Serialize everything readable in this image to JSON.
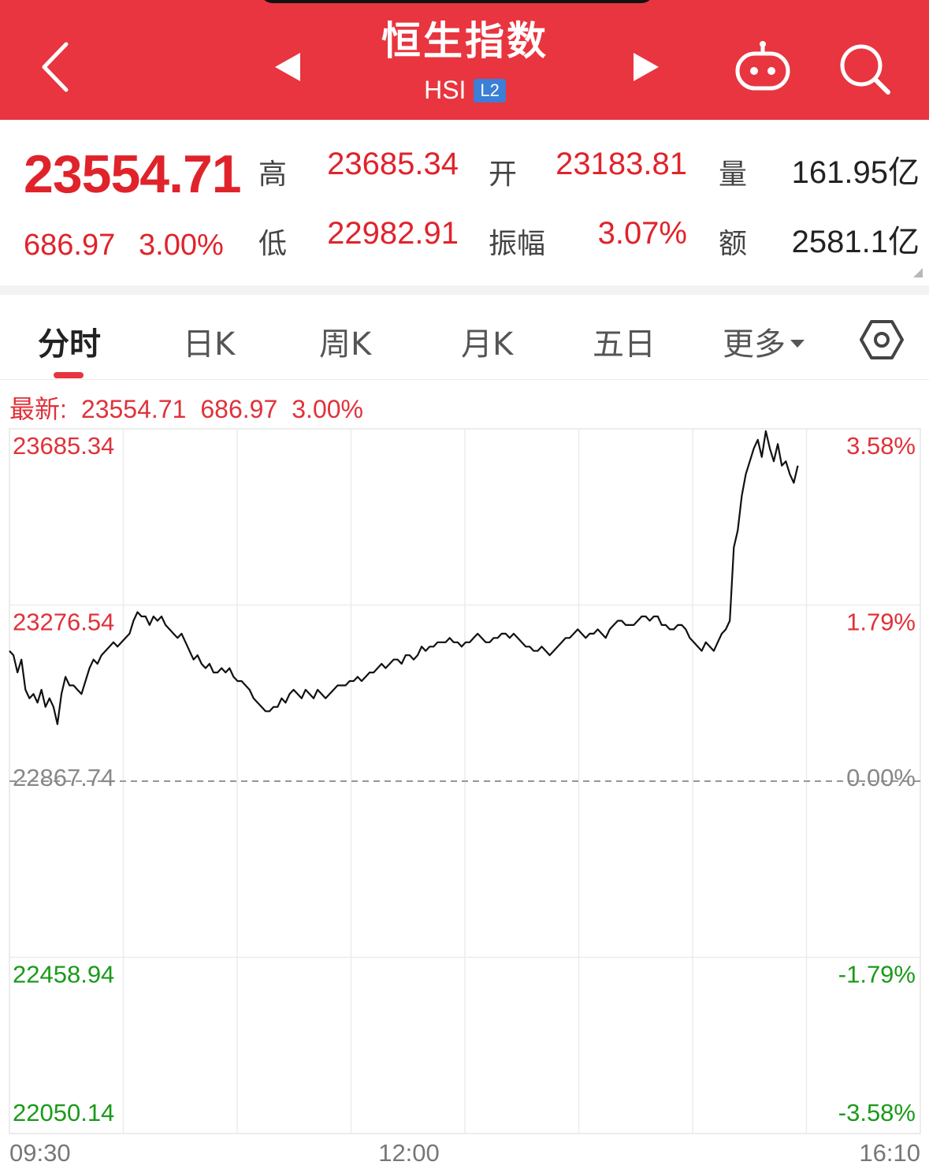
{
  "header": {
    "title": "恒生指数",
    "code": "HSI",
    "badge": "L2",
    "bg_color": "#e8353f",
    "icons": [
      "back-icon",
      "prev-arrow-icon",
      "next-arrow-icon",
      "robot-icon",
      "search-icon"
    ]
  },
  "quote": {
    "price": "23554.71",
    "change": "686.97",
    "change_pct": "3.00%",
    "fields": {
      "high": {
        "label": "高",
        "value": "23685.34"
      },
      "open": {
        "label": "开",
        "value": "23183.81"
      },
      "volume": {
        "label": "量",
        "value": "161.95亿"
      },
      "low": {
        "label": "低",
        "value": "22982.91"
      },
      "amplitude": {
        "label": "振幅",
        "value": "3.07%"
      },
      "turnover": {
        "label": "额",
        "value": "2581.1亿"
      }
    },
    "up_color": "#e0232b"
  },
  "tabs": {
    "items": [
      "分时",
      "日K",
      "周K",
      "月K",
      "五日",
      "更多"
    ],
    "active": "分时"
  },
  "latest": {
    "label": "最新:",
    "price": "23554.71",
    "change": "686.97",
    "pct": "3.00%"
  },
  "chart_data": {
    "type": "line",
    "grid": true,
    "x_ticks": [
      "09:30",
      "12:00",
      "16:10"
    ],
    "y_ticks_left": [
      "23685.34",
      "23276.54",
      "22867.74",
      "22458.94",
      "22050.14"
    ],
    "y_ticks_right": [
      "3.58%",
      "1.79%",
      "0.00%",
      "-1.79%",
      "-3.58%"
    ],
    "prev_close": 22867.74,
    "ylim": [
      22050.14,
      23685.34
    ],
    "colors": {
      "up": "#e0323a",
      "down": "#1a9a1a",
      "flat": "#888888",
      "line": "#111111"
    },
    "series": [
      {
        "values": [
          23170,
          23160,
          23120,
          23150,
          23080,
          23060,
          23070,
          23050,
          23080,
          23040,
          23060,
          23040,
          23000,
          23070,
          23110,
          23090,
          23090,
          23080,
          23070,
          23100,
          23130,
          23150,
          23140,
          23160,
          23170,
          23180,
          23190,
          23180,
          23190,
          23200,
          23210,
          23240,
          23260,
          23250,
          23250,
          23230,
          23250,
          23240,
          23250,
          23230,
          23220,
          23210,
          23200,
          23210,
          23190,
          23170,
          23150,
          23160,
          23140,
          23130,
          23140,
          23120,
          23120,
          23130,
          23120,
          23130,
          23110,
          23100,
          23100,
          23090,
          23080,
          23060,
          23050,
          23040,
          23030,
          23030,
          23040,
          23040,
          23060,
          23050,
          23070,
          23080,
          23070,
          23060,
          23080,
          23070,
          23060,
          23080,
          23070,
          23060,
          23070,
          23080,
          23090,
          23090,
          23090,
          23100,
          23100,
          23110,
          23100,
          23110,
          23120,
          23120,
          23130,
          23140,
          23130,
          23140,
          23150,
          23150,
          23140,
          23160,
          23160,
          23150,
          23160,
          23180,
          23170,
          23180,
          23180,
          23190,
          23190,
          23190,
          23200,
          23190,
          23190,
          23180,
          23190,
          23190,
          23200,
          23210,
          23200,
          23190,
          23190,
          23200,
          23200,
          23210,
          23210,
          23200,
          23210,
          23200,
          23190,
          23180,
          23180,
          23170,
          23170,
          23180,
          23170,
          23160,
          23170,
          23180,
          23190,
          23200,
          23200,
          23210,
          23220,
          23210,
          23200,
          23210,
          23210,
          23220,
          23210,
          23200,
          23220,
          23230,
          23240,
          23240,
          23230,
          23230,
          23230,
          23240,
          23250,
          23250,
          23240,
          23250,
          23250,
          23230,
          23230,
          23220,
          23220,
          23230,
          23230,
          23220,
          23200,
          23190,
          23180,
          23170,
          23190,
          23180,
          23170,
          23190,
          23210,
          23220,
          23240,
          23410,
          23450,
          23530,
          23580,
          23610,
          23640,
          23660,
          23620,
          23680,
          23640,
          23610,
          23650,
          23600,
          23610,
          23580,
          23560,
          23600
        ]
      }
    ]
  }
}
